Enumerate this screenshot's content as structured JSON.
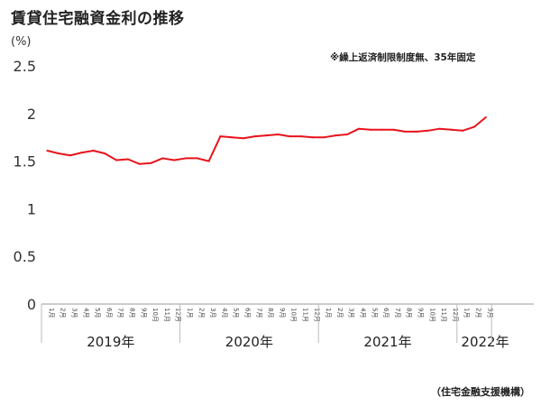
{
  "title": "賃貸住宅融資金利の推移",
  "source": "（住宅金融支援機構）",
  "chart_data": {
    "type": "line",
    "title": "賃貸住宅融資金利の推移",
    "note": "※繰上返済制限制度無、35年固定",
    "ylabel": "(%)",
    "xlabel": "",
    "ylim": [
      0,
      2.5
    ],
    "yticks": [
      "0",
      "0.5",
      "1",
      "1.5",
      "2",
      "2.5"
    ],
    "grid": false,
    "series_color": "#e8131b",
    "years": [
      {
        "label": "2019年",
        "months": [
          "1月",
          "2月",
          "3月",
          "4月",
          "5月",
          "6月",
          "7月",
          "8月",
          "9月",
          "10月",
          "11月",
          "12月"
        ]
      },
      {
        "label": "2020年",
        "months": [
          "1月",
          "2月",
          "3月",
          "4月",
          "5月",
          "6月",
          "7月",
          "8月",
          "9月",
          "10月",
          "11月",
          "12月"
        ]
      },
      {
        "label": "2021年",
        "months": [
          "1月",
          "2月",
          "3月",
          "4月",
          "5月",
          "6月",
          "7月",
          "8月",
          "9月",
          "10月",
          "11月",
          "12月"
        ]
      },
      {
        "label": "2022年",
        "months": [
          "1月",
          "2月",
          "3月"
        ]
      }
    ],
    "series": [
      {
        "values": [
          1.61,
          1.58,
          1.56,
          1.59,
          1.61,
          1.58,
          1.51,
          1.52,
          1.47,
          1.48,
          1.53,
          1.51,
          1.53,
          1.53,
          1.5,
          1.76,
          1.75,
          1.74,
          1.76,
          1.77,
          1.78,
          1.76,
          1.76,
          1.75,
          1.75,
          1.77,
          1.78,
          1.84,
          1.83,
          1.83,
          1.83,
          1.81,
          1.81,
          1.82,
          1.84,
          1.83,
          1.82,
          1.86,
          1.96
        ]
      }
    ]
  }
}
